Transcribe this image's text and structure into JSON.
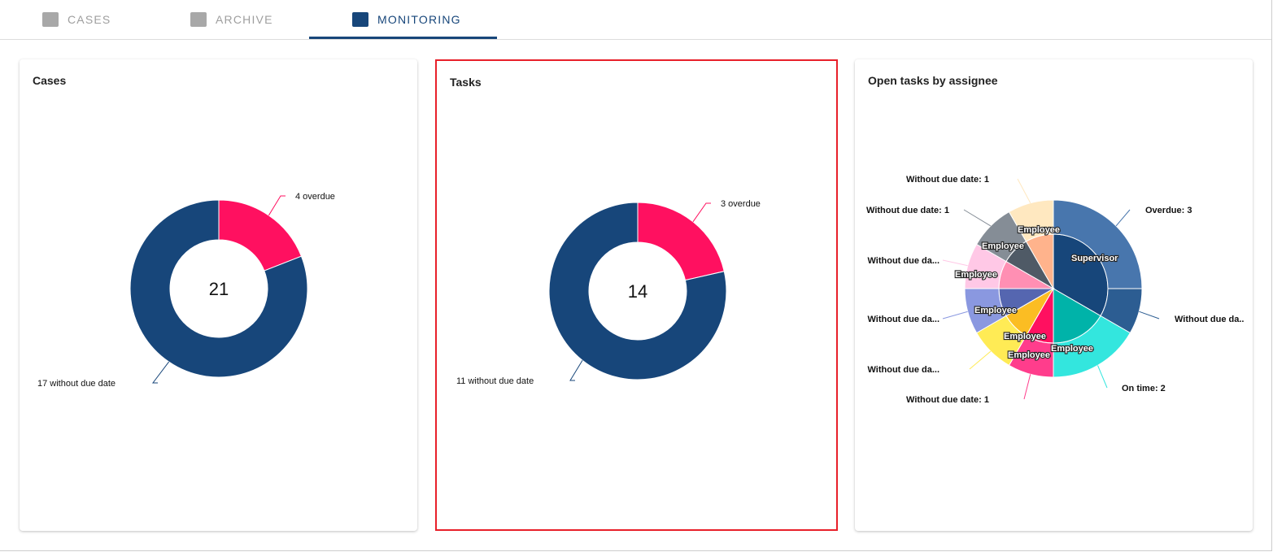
{
  "tabs": [
    {
      "label": "CASES",
      "icon": "folder-icon",
      "active": false
    },
    {
      "label": "ARCHIVE",
      "icon": "archive-icon",
      "active": false
    },
    {
      "label": "MONITORING",
      "icon": "bar-chart-icon",
      "active": true
    }
  ],
  "colors": {
    "accent": "#17467a",
    "selected_border": "#e8202a"
  },
  "chart_data": [
    {
      "type": "pie",
      "variant": "donut",
      "title": "Cases",
      "total_label": "21",
      "slices": [
        {
          "label": "4 overdue",
          "value": 4,
          "color": "#ff1060"
        },
        {
          "label": "17 without due date",
          "value": 17,
          "color": "#17467a"
        }
      ]
    },
    {
      "type": "pie",
      "variant": "donut",
      "title": "Tasks",
      "total_label": "14",
      "slices": [
        {
          "label": "3 overdue",
          "value": 3,
          "color": "#ff1060"
        },
        {
          "label": "11 without due date",
          "value": 11,
          "color": "#17467a"
        }
      ]
    },
    {
      "type": "pie",
      "variant": "sunburst",
      "title": "Open tasks by assignee",
      "inner": [
        {
          "label": "Supervisor",
          "value": 4,
          "color": "#17467a"
        },
        {
          "label": "Employee",
          "value": 2,
          "color": "#00b3a9"
        },
        {
          "label": "Employee",
          "value": 1,
          "color": "#ff1060"
        },
        {
          "label": "Employee",
          "value": 1,
          "color": "#fbbd23"
        },
        {
          "label": "Employee",
          "value": 1,
          "color": "#5566b0"
        },
        {
          "label": "Employee",
          "value": 1,
          "color": "#ff8fb3"
        },
        {
          "label": "Employee",
          "value": 1,
          "color": "#4f5a66"
        },
        {
          "label": "Employee",
          "value": 1,
          "color": "#ffb38c"
        }
      ],
      "outer": [
        {
          "label": "Overdue: 3",
          "value": 3,
          "color": "#4876ad"
        },
        {
          "label": "Without due da..",
          "value": 1,
          "color": "#2c5d92"
        },
        {
          "label": "On time: 2",
          "value": 2,
          "color": "#33e6de"
        },
        {
          "label": "Without due date: 1",
          "value": 1,
          "color": "#ff3d8c"
        },
        {
          "label": "Without due da...",
          "value": 1,
          "color": "#ffeb55"
        },
        {
          "label": "Without due da...",
          "value": 1,
          "color": "#8a98e0"
        },
        {
          "label": "Without due da...",
          "value": 1,
          "color": "#ffc8e6"
        },
        {
          "label": "Without due date: 1",
          "value": 1,
          "color": "#858d96"
        },
        {
          "label": "Without due date: 1",
          "value": 1,
          "color": "#ffe8c0"
        }
      ]
    }
  ]
}
